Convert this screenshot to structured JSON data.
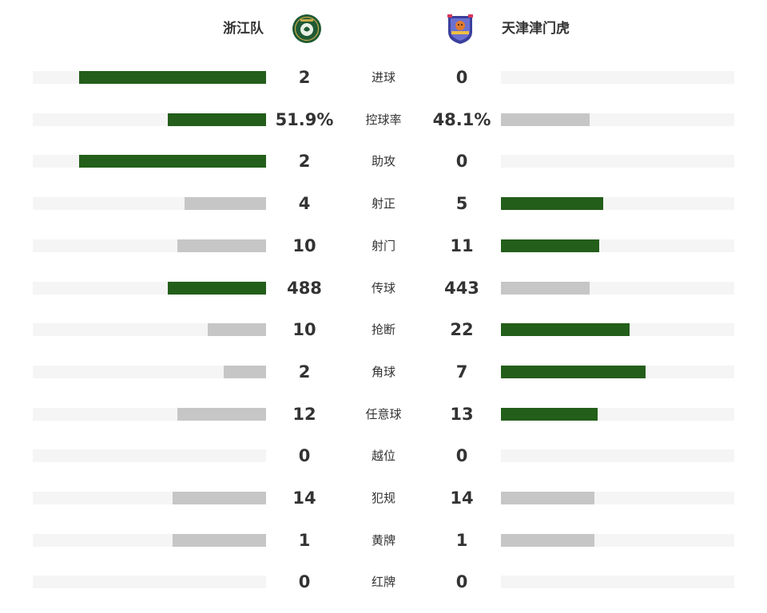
{
  "teams": {
    "home": {
      "name": "浙江队",
      "logo_icon": "zhejiang-club-crest-icon",
      "logo_color": "#1f5a34"
    },
    "away": {
      "name": "天津津门虎",
      "logo_icon": "tianjin-tiger-crest-icon",
      "logo_color": "#3a3f9c"
    }
  },
  "colors": {
    "leader_bar": "#235e1a",
    "trailing_bar": "#c6c6c6",
    "track": "#f5f5f5"
  },
  "stats": [
    {
      "label": "进球",
      "home": "2",
      "away": "0",
      "home_fill": 0.8,
      "away_fill": 0.0,
      "leader": "home"
    },
    {
      "label": "控球率",
      "home": "51.9%",
      "away": "48.1%",
      "home_fill": 0.42,
      "away_fill": 0.38,
      "leader": "home"
    },
    {
      "label": "助攻",
      "home": "2",
      "away": "0",
      "home_fill": 0.8,
      "away_fill": 0.0,
      "leader": "home"
    },
    {
      "label": "射正",
      "home": "4",
      "away": "5",
      "home_fill": 0.35,
      "away_fill": 0.44,
      "leader": "away"
    },
    {
      "label": "射门",
      "home": "10",
      "away": "11",
      "home_fill": 0.38,
      "away_fill": 0.42,
      "leader": "away"
    },
    {
      "label": "传球",
      "home": "488",
      "away": "443",
      "home_fill": 0.42,
      "away_fill": 0.38,
      "leader": "home"
    },
    {
      "label": "抢断",
      "home": "10",
      "away": "22",
      "home_fill": 0.25,
      "away_fill": 0.55,
      "leader": "away"
    },
    {
      "label": "角球",
      "home": "2",
      "away": "7",
      "home_fill": 0.18,
      "away_fill": 0.62,
      "leader": "away"
    },
    {
      "label": "任意球",
      "home": "12",
      "away": "13",
      "home_fill": 0.38,
      "away_fill": 0.415,
      "leader": "away"
    },
    {
      "label": "越位",
      "home": "0",
      "away": "0",
      "home_fill": 0.0,
      "away_fill": 0.0,
      "leader": "none"
    },
    {
      "label": "犯规",
      "home": "14",
      "away": "14",
      "home_fill": 0.4,
      "away_fill": 0.4,
      "leader": "none"
    },
    {
      "label": "黄牌",
      "home": "1",
      "away": "1",
      "home_fill": 0.4,
      "away_fill": 0.4,
      "leader": "none"
    },
    {
      "label": "红牌",
      "home": "0",
      "away": "0",
      "home_fill": 0.0,
      "away_fill": 0.0,
      "leader": "none"
    }
  ]
}
